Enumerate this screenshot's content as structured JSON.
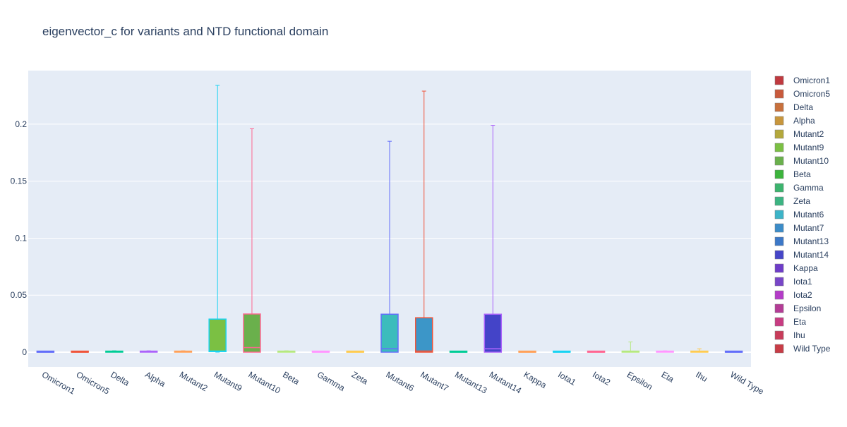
{
  "chart_data": {
    "type": "box",
    "title": "eigenvector_c for variants and NTD functional domain",
    "xlabel": "",
    "ylabel": "",
    "ylim": [
      -0.013,
      0.247
    ],
    "y_ticks": [
      0,
      0.05,
      0.1,
      0.15,
      0.2
    ],
    "y_tick_labels": [
      "0",
      "0.05",
      "0.1",
      "0.15",
      "0.2"
    ],
    "grid": true,
    "legend_position": "right",
    "categories": [
      "Omicron1",
      "Omicron5",
      "Delta",
      "Alpha",
      "Mutant2",
      "Mutant9",
      "Mutant10",
      "Beta",
      "Gamma",
      "Zeta",
      "Mutant6",
      "Mutant7",
      "Mutant13",
      "Mutant14",
      "Kappa",
      "Iota1",
      "Iota2",
      "Epsilon",
      "Eta",
      "Ihu",
      "Wild Type"
    ],
    "series": [
      {
        "name": "Omicron1",
        "color": "#636efa",
        "legend_color": "#c0393f",
        "min": 0,
        "q1": 0,
        "median": 0,
        "q3": 0.0003,
        "max": 0.0008
      },
      {
        "name": "Omicron5",
        "color": "#ef553b",
        "legend_color": "#c85a3c",
        "min": 0,
        "q1": 0,
        "median": 0,
        "q3": 0.0003,
        "max": 0.0008
      },
      {
        "name": "Delta",
        "color": "#00cc96",
        "legend_color": "#c8703c",
        "min": 0,
        "q1": 0,
        "median": 0.0002,
        "q3": 0.0005,
        "max": 0.0012
      },
      {
        "name": "Alpha",
        "color": "#ab63fa",
        "legend_color": "#c8963c",
        "min": 0,
        "q1": 0,
        "median": 0.0002,
        "q3": 0.0005,
        "max": 0.0012
      },
      {
        "name": "Mutant2",
        "color": "#ffa15a",
        "legend_color": "#b4a83c",
        "min": 0,
        "q1": 0,
        "median": 0.0002,
        "q3": 0.0005,
        "max": 0.0012
      },
      {
        "name": "Mutant9",
        "color": "#19d3f3",
        "fill": "#7bc043",
        "legend_color": "#7bc043",
        "min": 0,
        "q1": 0.0005,
        "median": 0.001,
        "q3": 0.029,
        "max": 0.234
      },
      {
        "name": "Mutant10",
        "color": "#ff6692",
        "fill": "#6ab04c",
        "legend_color": "#6ab04c",
        "min": 0,
        "q1": 0,
        "median": 0.004,
        "q3": 0.0335,
        "max": 0.196
      },
      {
        "name": "Beta",
        "color": "#b6e880",
        "legend_color": "#3cb43c",
        "min": 0,
        "q1": 0,
        "median": 0.0002,
        "q3": 0.0005,
        "max": 0.0012
      },
      {
        "name": "Gamma",
        "color": "#ff97ff",
        "legend_color": "#3cb46e",
        "min": 0,
        "q1": 0,
        "median": 0,
        "q3": 0.0002,
        "max": 0.0005
      },
      {
        "name": "Zeta",
        "color": "#fecb52",
        "legend_color": "#3cb482",
        "min": 0,
        "q1": 0,
        "median": 0,
        "q3": 0.0002,
        "max": 0.0005
      },
      {
        "name": "Mutant6",
        "color": "#636efa",
        "fill": "#3cbcbc",
        "legend_color": "#3cb4c8",
        "min": 0,
        "q1": 0,
        "median": 0.003,
        "q3": 0.0333,
        "max": 0.185
      },
      {
        "name": "Mutant7",
        "color": "#ef553b",
        "fill": "#3c96c8",
        "legend_color": "#3c8cc8",
        "min": 0,
        "q1": 0,
        "median": 0.001,
        "q3": 0.0302,
        "max": 0.229
      },
      {
        "name": "Mutant13",
        "color": "#00cc96",
        "legend_color": "#3c78c8",
        "min": 0,
        "q1": 0,
        "median": 0,
        "q3": 0.0002,
        "max": 0.0005
      },
      {
        "name": "Mutant14",
        "color": "#ab63fa",
        "fill": "#4444c8",
        "legend_color": "#4646c8",
        "min": 0,
        "q1": 0,
        "median": 0.003,
        "q3": 0.0333,
        "max": 0.199
      },
      {
        "name": "Kappa",
        "color": "#ffa15a",
        "legend_color": "#6e3cc8",
        "min": 0,
        "q1": 0,
        "median": 0,
        "q3": 0.0002,
        "max": 0.0005
      },
      {
        "name": "Iota1",
        "color": "#19d3f3",
        "legend_color": "#7846c8",
        "min": 0,
        "q1": 0,
        "median": 0,
        "q3": 0.0002,
        "max": 0.0005
      },
      {
        "name": "Iota2",
        "color": "#ff6692",
        "legend_color": "#b43cc8",
        "min": 0,
        "q1": 0,
        "median": 0,
        "q3": 0.0002,
        "max": 0.0005
      },
      {
        "name": "Epsilon",
        "color": "#b6e880",
        "legend_color": "#b43c96",
        "min": 0,
        "q1": 0,
        "median": 0.0002,
        "q3": 0.0006,
        "max": 0.009
      },
      {
        "name": "Eta",
        "color": "#ff97ff",
        "legend_color": "#c83c82",
        "min": 0,
        "q1": 0,
        "median": 0.0002,
        "q3": 0.0005,
        "max": 0.0012
      },
      {
        "name": "Ihu",
        "color": "#fecb52",
        "legend_color": "#c83c5a",
        "min": 0,
        "q1": 0,
        "median": 0.0002,
        "q3": 0.0006,
        "max": 0.003
      },
      {
        "name": "Wild Type",
        "color": "#636efa",
        "legend_color": "#c83c46",
        "min": 0,
        "q1": 0,
        "median": 0,
        "q3": 0.0002,
        "max": 0.0005
      }
    ]
  }
}
